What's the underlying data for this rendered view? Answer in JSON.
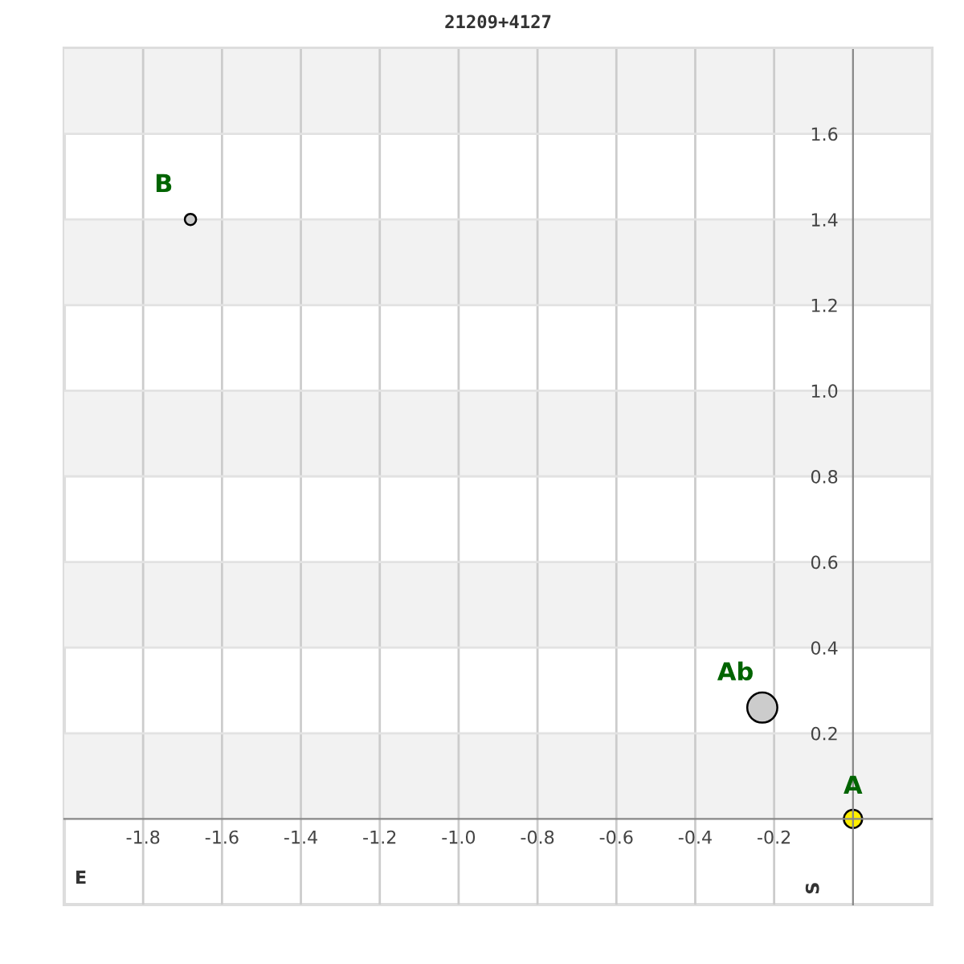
{
  "chart_data": {
    "type": "bubble",
    "title": "21209+4127",
    "xlabel": "E",
    "ylabel": "S",
    "series": [
      {
        "name": "A",
        "color": "#ffee00",
        "x": [
          0
        ],
        "values": [
          0
        ],
        "sizes": [
          0.37
        ]
      },
      {
        "name": "Ab",
        "color": "#cccccc",
        "x": [
          -0.23
        ],
        "values": [
          0.26
        ],
        "sizes": [
          1
        ]
      },
      {
        "name": "B",
        "color": "#cccccc",
        "x": [
          -1.68
        ],
        "values": [
          1.4
        ],
        "sizes": [
          0.14
        ]
      }
    ],
    "xlim": [
      -2.0,
      0.2
    ],
    "xticks": [
      -1.8,
      -1.6,
      -1.4,
      -1.2,
      {
        "value": -1.0,
        "label": "-1.0"
      },
      -0.8,
      -0.6,
      -0.4,
      -0.2
    ],
    "ylim": [
      -0.2,
      1.8
    ],
    "yticks": [
      0.2,
      0.4,
      0.6,
      0.8,
      {
        "value": 1.0,
        "label": "1.0"
      },
      1.2,
      1.4,
      1.6
    ],
    "grid": true,
    "bands": [
      {
        "axis": "y",
        "from": 0,
        "to": 0.2,
        "color": "#f2f2f2"
      },
      {
        "axis": "y",
        "from": 0.4,
        "to": 0.6,
        "color": "#f2f2f2"
      },
      {
        "axis": "y",
        "from": 0.8,
        "to": 1.0,
        "color": "#f2f2f2"
      },
      {
        "axis": "y",
        "from": 1.2,
        "to": 1.4,
        "color": "#f2f2f2"
      },
      {
        "axis": "y",
        "from": 1.6,
        "to": 1.8,
        "color": "#f2f2f2"
      }
    ]
  }
}
